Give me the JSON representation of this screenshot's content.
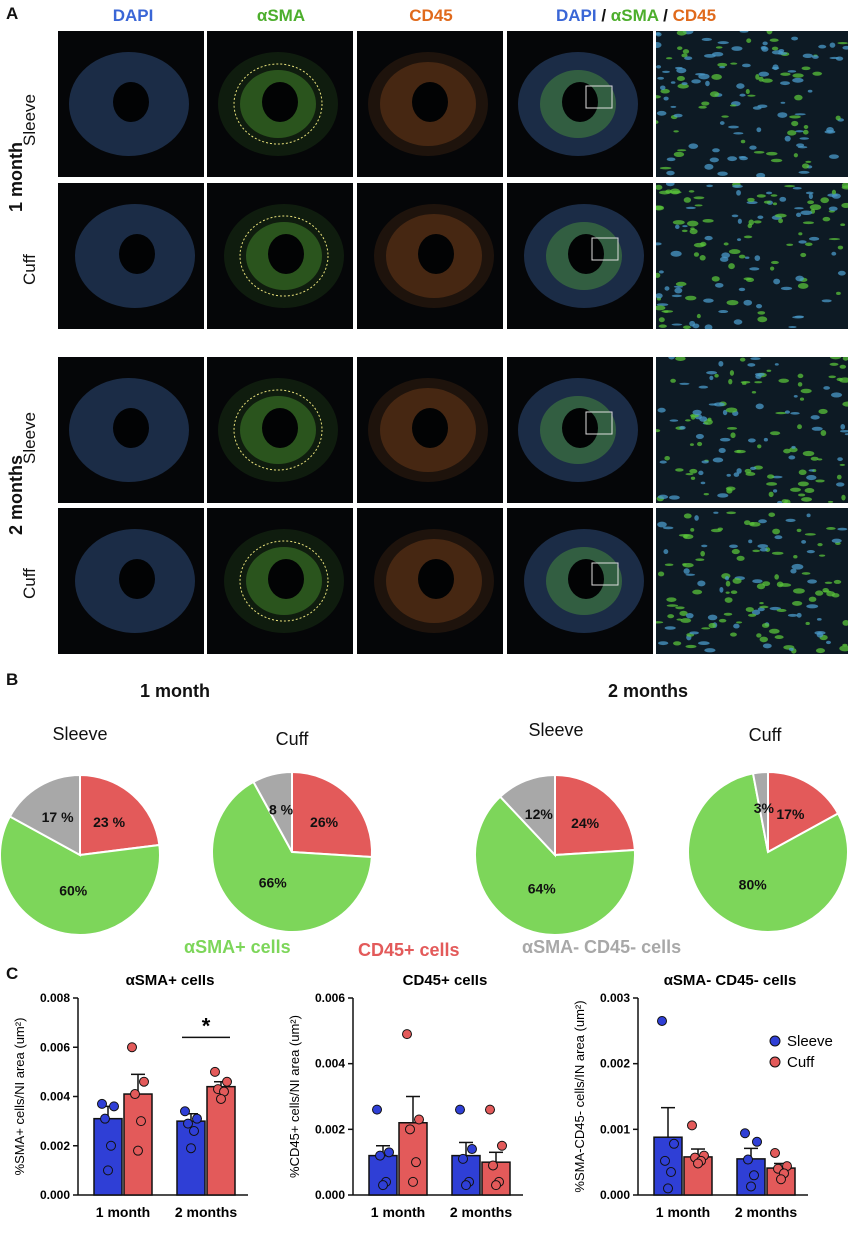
{
  "panel_a": {
    "letter": "A",
    "headers": {
      "dapi": "DAPI",
      "asma": "αSMA",
      "cd45": "CD45",
      "merge_1": "DAPI",
      "merge_sep_1": " / ",
      "merge_2": "αSMA",
      "merge_sep_2": " / ",
      "merge_3": "CD45"
    },
    "groups": [
      "1 month",
      "2 months"
    ],
    "rows": [
      "Sleeve",
      "Cuff",
      "Sleeve",
      "Cuff"
    ],
    "colors": {
      "dapi": "#3a66d6",
      "asma": "#4cae2c",
      "cd45": "#e06a1c"
    }
  },
  "panel_b": {
    "letter": "B",
    "group_titles": [
      "1 month",
      "2 months"
    ],
    "pie_titles": [
      "Sleeve",
      "Cuff",
      "Sleeve",
      "Cuff"
    ],
    "legend": {
      "asma": "αSMA+ cells",
      "cd45": "CD45+ cells",
      "neg": "αSMA- CD45- cells"
    },
    "colors": {
      "asma": "#7dd65a",
      "cd45": "#e35a5a",
      "neg": "#a8a8a8"
    }
  },
  "panel_c": {
    "letter": "C",
    "legend": {
      "sleeve": "Sleeve",
      "cuff": "Cuff"
    },
    "colors": {
      "sleeve": "#2f3fd6",
      "cuff": "#e35a5a"
    },
    "significance": "*"
  },
  "chart_data": [
    {
      "type": "pie",
      "title": "Sleeve",
      "slices": [
        {
          "label": "αSMA+ cells",
          "value": 60,
          "text": "60%"
        },
        {
          "label": "CD45+ cells",
          "value": 23,
          "text": "23 %"
        },
        {
          "label": "αSMA- CD45- cells",
          "value": 17,
          "text": "17 %"
        }
      ]
    },
    {
      "type": "pie",
      "title": "Cuff",
      "slices": [
        {
          "label": "αSMA+ cells",
          "value": 66,
          "text": "66%"
        },
        {
          "label": "CD45+ cells",
          "value": 26,
          "text": "26%"
        },
        {
          "label": "αSMA- CD45- cells",
          "value": 8,
          "text": "8 %"
        }
      ]
    },
    {
      "type": "pie",
      "title": "Sleeve",
      "slices": [
        {
          "label": "αSMA+ cells",
          "value": 64,
          "text": "64%"
        },
        {
          "label": "CD45+ cells",
          "value": 24,
          "text": "24%"
        },
        {
          "label": "αSMA- CD45- cells",
          "value": 12,
          "text": "12%"
        }
      ]
    },
    {
      "type": "pie",
      "title": "Cuff",
      "slices": [
        {
          "label": "αSMA+ cells",
          "value": 80,
          "text": "80%"
        },
        {
          "label": "CD45+ cells",
          "value": 17,
          "text": "17%"
        },
        {
          "label": "αSMA- CD45- cells",
          "value": 3,
          "text": "3%"
        }
      ]
    },
    {
      "type": "bar",
      "title": "αSMA+ cells",
      "ylabel": "%SMA+ cells/NI area (um²)",
      "categories": [
        "1 month",
        "2 months"
      ],
      "ylim": [
        0,
        0.008
      ],
      "yticks": [
        "0.000",
        "0.002",
        "0.004",
        "0.006",
        "0.008"
      ],
      "series": [
        {
          "name": "Sleeve",
          "values": [
            0.0031,
            0.003
          ],
          "sem": [
            0.0005,
            0.0003
          ],
          "points": [
            [
              0.0037,
              0.0036,
              0.0031,
              0.002,
              0.001
            ],
            [
              0.0034,
              0.0031,
              0.0029,
              0.0026,
              0.0019
            ]
          ]
        },
        {
          "name": "Cuff",
          "values": [
            0.0041,
            0.0044
          ],
          "sem": [
            0.0008,
            0.0002
          ],
          "points": [
            [
              0.006,
              0.0046,
              0.0041,
              0.003,
              0.0018
            ],
            [
              0.005,
              0.0046,
              0.0043,
              0.0042,
              0.0039
            ]
          ]
        }
      ]
    },
    {
      "type": "bar",
      "title": "CD45+ cells",
      "ylabel": "%CD45+ cells/NI area (um²)",
      "categories": [
        "1 month",
        "2 months"
      ],
      "ylim": [
        0,
        0.006
      ],
      "yticks": [
        "0.000",
        "0.002",
        "0.004",
        "0.006"
      ],
      "series": [
        {
          "name": "Sleeve",
          "values": [
            0.0012,
            0.0012
          ],
          "sem": [
            0.0003,
            0.0004
          ],
          "points": [
            [
              0.0026,
              0.0013,
              0.0012,
              0.0004,
              0.0003
            ],
            [
              0.0026,
              0.0014,
              0.0011,
              0.0004,
              0.0003
            ]
          ]
        },
        {
          "name": "Cuff",
          "values": [
            0.0022,
            0.001
          ],
          "sem": [
            0.0008,
            0.0003
          ],
          "points": [
            [
              0.0049,
              0.0023,
              0.002,
              0.001,
              0.0004
            ],
            [
              0.0026,
              0.0015,
              0.0009,
              0.0004,
              0.0003
            ]
          ]
        }
      ]
    },
    {
      "type": "bar",
      "title": "αSMA- CD45- cells",
      "ylabel": "%SMA-CD45- cells/IN area (um²)",
      "categories": [
        "1 month",
        "2 months"
      ],
      "ylim": [
        0,
        0.003
      ],
      "yticks": [
        "0.000",
        "0.001",
        "0.002",
        "0.003"
      ],
      "series": [
        {
          "name": "Sleeve",
          "values": [
            0.00088,
            0.00055
          ],
          "sem": [
            0.00045,
            0.00016
          ],
          "points": [
            [
              0.00265,
              0.00078,
              0.00052,
              0.00035,
              0.0001
            ],
            [
              0.00094,
              0.00081,
              0.00054,
              0.0003,
              0.00013
            ]
          ]
        },
        {
          "name": "Cuff",
          "values": [
            0.00058,
            0.00041
          ],
          "sem": [
            0.00012,
            7e-05
          ],
          "points": [
            [
              0.00106,
              0.0006,
              0.00057,
              0.00052,
              0.00048
            ],
            [
              0.00064,
              0.00044,
              0.0004,
              0.00033,
              0.00024
            ]
          ]
        }
      ]
    }
  ]
}
